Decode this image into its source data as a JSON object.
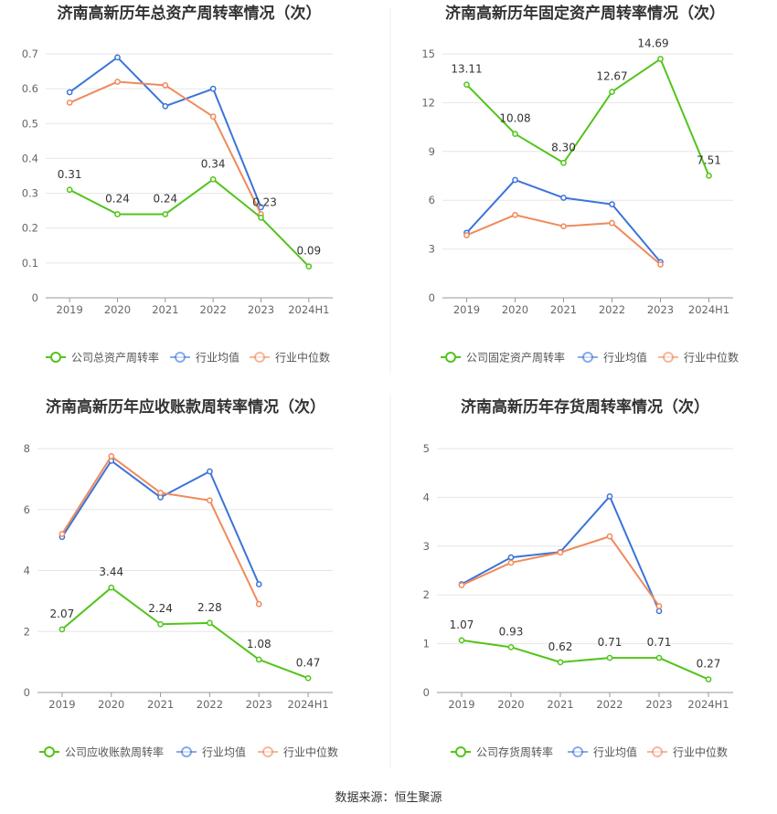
{
  "source": "数据来源：恒生聚源",
  "colors": {
    "company": "#52c41a",
    "avg": "#3b74d9",
    "median": "#f08a5d",
    "grid": "#e6e6e6",
    "axis": "#999999",
    "divider": "#eeeeee"
  },
  "legend": {
    "avg": "行业均值",
    "median": "行业中位数"
  },
  "chart_data": [
    {
      "type": "line",
      "title": "济南高新历年总资产周转率情况（次）",
      "categories": [
        "2019",
        "2020",
        "2021",
        "2022",
        "2023",
        "2024H1"
      ],
      "ylim": [
        0,
        0.7
      ],
      "yticks": [
        "0",
        "0.1",
        "0.2",
        "0.3",
        "0.4",
        "0.5",
        "0.6",
        "0.7"
      ],
      "grid": true,
      "legend_position": "bottom",
      "series": [
        {
          "key": "company",
          "name": "公司总资产周转率",
          "values": [
            0.31,
            0.24,
            0.24,
            0.34,
            0.23,
            0.09
          ],
          "labels": [
            "0.31",
            "0.24",
            "0.24",
            "0.34",
            "0.23",
            "0.09"
          ]
        },
        {
          "key": "avg",
          "name": "行业均值",
          "values": [
            0.59,
            0.69,
            0.55,
            0.6,
            0.26,
            null
          ]
        },
        {
          "key": "median",
          "name": "行业中位数",
          "values": [
            0.56,
            0.62,
            0.61,
            0.52,
            0.24,
            null
          ]
        }
      ]
    },
    {
      "type": "line",
      "title": "济南高新历年固定资产周转率情况（次）",
      "categories": [
        "2019",
        "2020",
        "2021",
        "2022",
        "2023",
        "2024H1"
      ],
      "ylim": [
        0,
        15
      ],
      "yticks": [
        "0",
        "3",
        "6",
        "9",
        "12",
        "15"
      ],
      "grid": true,
      "legend_position": "bottom",
      "series": [
        {
          "key": "company",
          "name": "公司固定资产周转率",
          "values": [
            13.11,
            10.08,
            8.3,
            12.67,
            14.69,
            7.51
          ],
          "labels": [
            "13.11",
            "10.08",
            "8.30",
            "12.67",
            "14.69",
            "7.51"
          ]
        },
        {
          "key": "avg",
          "name": "行业均值",
          "values": [
            4.0,
            7.25,
            6.15,
            5.75,
            2.2,
            null
          ]
        },
        {
          "key": "median",
          "name": "行业中位数",
          "values": [
            3.85,
            5.1,
            4.4,
            4.6,
            2.05,
            null
          ]
        }
      ]
    },
    {
      "type": "line",
      "title": "济南高新历年应收账款周转率情况（次）",
      "categories": [
        "2019",
        "2020",
        "2021",
        "2022",
        "2023",
        "2024H1"
      ],
      "ylim": [
        0,
        8
      ],
      "yticks": [
        "0",
        "2",
        "4",
        "6",
        "8"
      ],
      "grid": true,
      "legend_position": "bottom",
      "series": [
        {
          "key": "company",
          "name": "公司应收账款周转率",
          "values": [
            2.07,
            3.44,
            2.24,
            2.28,
            1.08,
            0.47
          ],
          "labels": [
            "2.07",
            "3.44",
            "2.24",
            "2.28",
            "1.08",
            "0.47"
          ]
        },
        {
          "key": "avg",
          "name": "行业均值",
          "values": [
            5.1,
            7.6,
            6.4,
            7.25,
            3.55,
            null
          ]
        },
        {
          "key": "median",
          "name": "行业中位数",
          "values": [
            5.2,
            7.75,
            6.55,
            6.3,
            2.9,
            null
          ]
        }
      ]
    },
    {
      "type": "line",
      "title": "济南高新历年存货周转率情况（次）",
      "categories": [
        "2019",
        "2020",
        "2021",
        "2022",
        "2023",
        "2024H1"
      ],
      "ylim": [
        0,
        5
      ],
      "yticks": [
        "0",
        "1",
        "2",
        "3",
        "4",
        "5"
      ],
      "grid": true,
      "legend_position": "bottom",
      "series": [
        {
          "key": "company",
          "name": "公司存货周转率",
          "values": [
            1.07,
            0.93,
            0.62,
            0.71,
            0.71,
            0.27
          ],
          "labels": [
            "1.07",
            "0.93",
            "0.62",
            "0.71",
            "0.71",
            "0.27"
          ]
        },
        {
          "key": "avg",
          "name": "行业均值",
          "values": [
            2.22,
            2.77,
            2.88,
            4.02,
            1.67,
            null
          ]
        },
        {
          "key": "median",
          "name": "行业中位数",
          "values": [
            2.2,
            2.66,
            2.87,
            3.2,
            1.77,
            null
          ]
        }
      ]
    }
  ]
}
